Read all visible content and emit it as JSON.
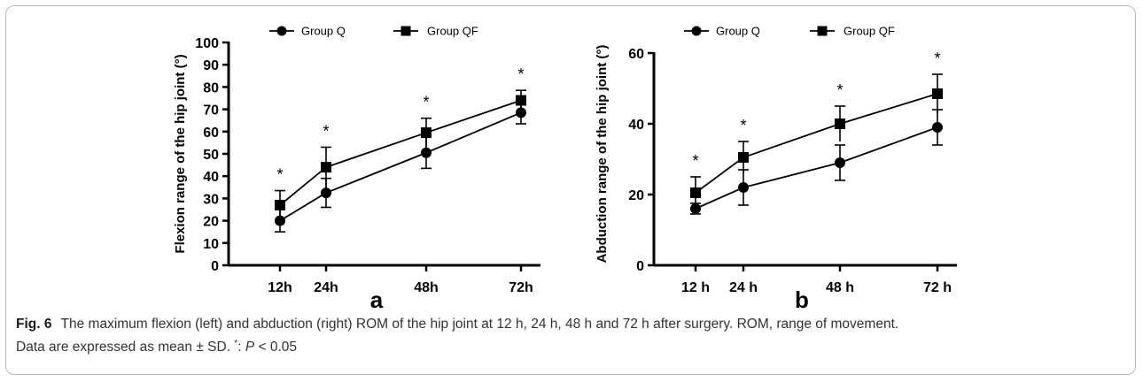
{
  "chart_data": [
    {
      "type": "line",
      "panel": "a",
      "ylabel": "Flexion range of the hip joint (°)",
      "categories": [
        "12h",
        "24h",
        "48h",
        "72h"
      ],
      "x": [
        12,
        24,
        48,
        72
      ],
      "ylim": [
        0,
        100
      ],
      "yticks": [
        0,
        10,
        20,
        30,
        40,
        50,
        60,
        70,
        80,
        90,
        100
      ],
      "series": [
        {
          "name": "Group Q",
          "marker": "circle",
          "values": [
            20,
            32.5,
            50.5,
            68.5
          ],
          "error": [
            5,
            6.5,
            7,
            5
          ]
        },
        {
          "name": "Group QF",
          "marker": "square",
          "values": [
            27,
            44,
            59.5,
            74
          ],
          "error": [
            6.5,
            9,
            6.5,
            4.5
          ]
        }
      ],
      "significance": [
        "*",
        "*",
        "*",
        "*"
      ]
    },
    {
      "type": "line",
      "panel": "b",
      "ylabel": "Abduction range of the hip joint (°)",
      "categories": [
        "12 h",
        "24 h",
        "48 h",
        "72 h"
      ],
      "x": [
        12,
        24,
        48,
        72
      ],
      "ylim": [
        0,
        60
      ],
      "yticks": [
        0,
        20,
        40,
        60
      ],
      "series": [
        {
          "name": "Group Q",
          "marker": "circle",
          "values": [
            16,
            22,
            29,
            39
          ],
          "error": [
            1.5,
            5,
            5,
            5
          ]
        },
        {
          "name": "Group QF",
          "marker": "square",
          "values": [
            20.5,
            30.5,
            40,
            48.5
          ],
          "error": [
            4.5,
            4.5,
            5,
            5.5
          ]
        }
      ],
      "significance": [
        "*",
        "*",
        "*",
        "*"
      ]
    }
  ],
  "caption": {
    "label": "Fig. 6",
    "text1": "The maximum flexion (left) and abduction (right) ROM of the hip joint at 12 h, 24 h, 48 h and 72 h after surgery. ROM, range of movement.",
    "text2": "Data are expressed as mean ± SD.",
    "sup": "*",
    "text3": ": ",
    "p_italic": "P",
    "text4": " < 0.05"
  }
}
